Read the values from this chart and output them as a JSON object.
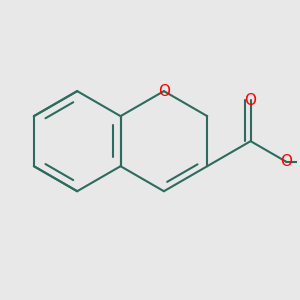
{
  "bg_color": "#e8e8e8",
  "bond_color": "#2d6b5e",
  "oxygen_color": "#ff0000",
  "line_width": 1.5,
  "font_size_O": 11,
  "xlim": [
    -0.5,
    4.5
  ],
  "ylim": [
    -0.5,
    4.2
  ]
}
